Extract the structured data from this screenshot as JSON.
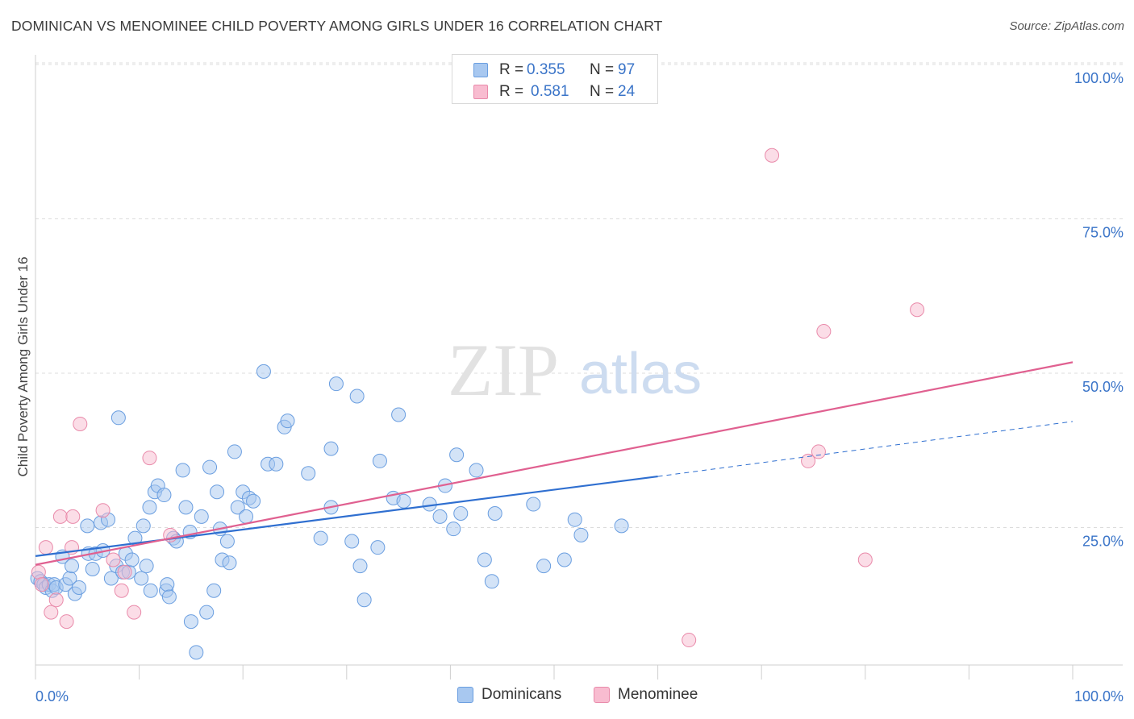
{
  "title": "DOMINICAN VS MENOMINEE CHILD POVERTY AMONG GIRLS UNDER 16 CORRELATION CHART",
  "source": "Source: ZipAtlas.com",
  "watermark": {
    "part1": "ZIP",
    "part2": "atlas"
  },
  "legend_top": [
    {
      "r_label": "R =",
      "r_value": "0.355",
      "n_label": "N =",
      "n_value": "97"
    },
    {
      "r_label": "R =",
      "r_value": "0.581",
      "n_label": "N =",
      "n_value": "24"
    }
  ],
  "legend_bottom": [
    {
      "label": "Dominicans"
    },
    {
      "label": "Menominee"
    }
  ],
  "colors": {
    "dominicans_fill": "#a8c8f0",
    "dominicans_stroke": "#6a9ee0",
    "dominicans_line": "#2f6fd0",
    "menominee_fill": "#f8bcd0",
    "menominee_stroke": "#e98aaa",
    "menominee_line": "#e06090",
    "tick_label": "#3a74c8",
    "grid": "#dcdcdc"
  },
  "chart_data": {
    "type": "scatter",
    "title": "DOMINICAN VS MENOMINEE CHILD POVERTY AMONG GIRLS UNDER 16 CORRELATION CHART",
    "xlabel": "",
    "ylabel": "Child Poverty Among Girls Under 16",
    "xlim": [
      0,
      100
    ],
    "ylim": [
      0,
      102
    ],
    "x_tick_labels": [
      {
        "value": 0,
        "label": "0.0%"
      },
      {
        "value": 100,
        "label": "100.0%"
      }
    ],
    "y_tick_labels": [
      {
        "value": 25,
        "label": "25.0%"
      },
      {
        "value": 50,
        "label": "50.0%"
      },
      {
        "value": 75,
        "label": "75.0%"
      },
      {
        "value": 100,
        "label": "100.0%"
      }
    ],
    "x_minor_ticks": [
      0,
      10,
      20,
      30,
      40,
      50,
      60,
      70,
      80,
      90,
      100
    ],
    "grid": true,
    "legend_position": "top-center",
    "series": [
      {
        "name": "Dominicans",
        "points": [
          [
            0.2,
            19.0
          ],
          [
            0.5,
            18.5
          ],
          [
            0.8,
            18.0
          ],
          [
            1.0,
            17.5
          ],
          [
            1.3,
            18.0
          ],
          [
            1.6,
            17.0
          ],
          [
            1.8,
            18.0
          ],
          [
            2.0,
            17.5
          ],
          [
            2.6,
            22.5
          ],
          [
            2.9,
            18.0
          ],
          [
            3.3,
            19.0
          ],
          [
            3.5,
            21.0
          ],
          [
            3.8,
            16.5
          ],
          [
            4.2,
            17.5
          ],
          [
            5.0,
            27.5
          ],
          [
            5.1,
            23.0
          ],
          [
            5.5,
            20.5
          ],
          [
            5.8,
            23.0
          ],
          [
            6.3,
            28.0
          ],
          [
            6.5,
            23.5
          ],
          [
            7.0,
            28.5
          ],
          [
            7.3,
            19.0
          ],
          [
            7.8,
            21.0
          ],
          [
            8.0,
            45.0
          ],
          [
            8.4,
            20.0
          ],
          [
            8.7,
            23.0
          ],
          [
            9.0,
            20.0
          ],
          [
            9.3,
            22.0
          ],
          [
            9.6,
            25.5
          ],
          [
            10.2,
            19.0
          ],
          [
            10.4,
            27.5
          ],
          [
            10.7,
            21.0
          ],
          [
            11.0,
            30.5
          ],
          [
            11.1,
            17.0
          ],
          [
            11.5,
            33.0
          ],
          [
            11.8,
            34.0
          ],
          [
            12.4,
            32.5
          ],
          [
            12.6,
            17.0
          ],
          [
            12.7,
            18.0
          ],
          [
            12.9,
            16.0
          ],
          [
            13.3,
            25.5
          ],
          [
            13.6,
            25.0
          ],
          [
            14.2,
            36.5
          ],
          [
            14.5,
            30.5
          ],
          [
            14.9,
            26.5
          ],
          [
            15.0,
            12.0
          ],
          [
            15.5,
            7.0
          ],
          [
            16.0,
            29.0
          ],
          [
            16.5,
            13.5
          ],
          [
            16.8,
            37.0
          ],
          [
            17.2,
            17.0
          ],
          [
            17.5,
            33.0
          ],
          [
            17.8,
            27.0
          ],
          [
            18.0,
            22.0
          ],
          [
            18.5,
            25.0
          ],
          [
            18.7,
            21.5
          ],
          [
            19.2,
            39.5
          ],
          [
            19.5,
            30.5
          ],
          [
            20.0,
            33.0
          ],
          [
            20.3,
            29.0
          ],
          [
            20.6,
            32.0
          ],
          [
            21.0,
            31.5
          ],
          [
            22.0,
            52.5
          ],
          [
            22.4,
            37.5
          ],
          [
            23.2,
            37.5
          ],
          [
            24.0,
            43.5
          ],
          [
            24.3,
            44.5
          ],
          [
            26.3,
            36.0
          ],
          [
            27.5,
            25.5
          ],
          [
            29.0,
            50.5
          ],
          [
            28.5,
            30.5
          ],
          [
            28.5,
            40.0
          ],
          [
            30.5,
            25.0
          ],
          [
            31.0,
            48.5
          ],
          [
            31.3,
            21.0
          ],
          [
            31.7,
            15.5
          ],
          [
            33.0,
            24.0
          ],
          [
            33.2,
            38.0
          ],
          [
            34.5,
            32.0
          ],
          [
            35.0,
            45.5
          ],
          [
            35.5,
            31.5
          ],
          [
            38.0,
            31.0
          ],
          [
            39.0,
            29.0
          ],
          [
            39.5,
            34.0
          ],
          [
            40.3,
            27.0
          ],
          [
            40.6,
            39.0
          ],
          [
            41.0,
            29.5
          ],
          [
            42.5,
            36.5
          ],
          [
            43.3,
            22.0
          ],
          [
            44.0,
            18.5
          ],
          [
            44.3,
            29.5
          ],
          [
            48.0,
            31.0
          ],
          [
            49.0,
            21.0
          ],
          [
            51.0,
            22.0
          ],
          [
            52.0,
            28.5
          ],
          [
            52.6,
            26.0
          ],
          [
            56.5,
            27.5
          ]
        ],
        "trend": {
          "x": [
            0,
            60,
            100
          ],
          "y": [
            22.6,
            35.5,
            44.4
          ],
          "dashed_from_x": 60
        }
      },
      {
        "name": "Menominee",
        "points": [
          [
            0.3,
            20.0
          ],
          [
            0.6,
            18.0
          ],
          [
            1.0,
            24.0
          ],
          [
            1.5,
            13.5
          ],
          [
            2.0,
            15.5
          ],
          [
            2.4,
            29.0
          ],
          [
            3.0,
            12.0
          ],
          [
            3.5,
            24.0
          ],
          [
            3.6,
            29.0
          ],
          [
            4.3,
            44.0
          ],
          [
            6.5,
            30.0
          ],
          [
            7.5,
            22.0
          ],
          [
            8.3,
            17.0
          ],
          [
            8.6,
            20.0
          ],
          [
            9.5,
            13.5
          ],
          [
            11.0,
            38.5
          ],
          [
            13.0,
            26.0
          ],
          [
            63.0,
            9.0
          ],
          [
            71.0,
            87.5
          ],
          [
            74.5,
            38.0
          ],
          [
            75.5,
            39.5
          ],
          [
            76.0,
            59.0
          ],
          [
            80.0,
            22.0
          ],
          [
            85.0,
            62.5
          ]
        ],
        "trend": {
          "x": [
            0,
            100
          ],
          "y": [
            21.2,
            54.0
          ]
        }
      }
    ]
  }
}
